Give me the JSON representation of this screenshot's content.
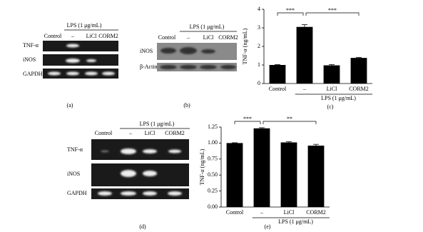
{
  "panels": {
    "a": {
      "lps": "LPS (1 μg/mL)",
      "lanes": [
        "Control",
        "–",
        "LiCl",
        "CORM2"
      ],
      "rows": [
        "TNF-α",
        "iNOS",
        "GAPDH"
      ],
      "caption": "(a)"
    },
    "b": {
      "lps": "LPS (1 μg/mL)",
      "lanes": [
        "Control",
        "–",
        "LiCl",
        "CORM2"
      ],
      "rows": [
        "iNOS",
        "β-Actin"
      ],
      "caption": "(b)"
    },
    "d": {
      "lps": "LPS (1 μg/mL)",
      "lanes": [
        "Control",
        "–",
        "LiCl",
        "CORM2"
      ],
      "rows": [
        "TNF-α",
        "iNOS",
        "GAPDH"
      ],
      "caption": "(d)"
    }
  },
  "chart_data": [
    {
      "type": "bar",
      "ylabel": "TNF-α (ng/mL)",
      "categories": [
        "Control",
        "–",
        "LiCl",
        "CORM2"
      ],
      "values": [
        1.0,
        3.05,
        0.98,
        1.38
      ],
      "errors": [
        0.02,
        0.12,
        0.04,
        0.03
      ],
      "color": "#000000",
      "ylim": [
        0,
        4
      ],
      "yticks": [
        0,
        1,
        2,
        3,
        4
      ],
      "group_label": "LPS (1 μg/mL)",
      "annotations": [
        "***",
        "***"
      ],
      "caption": "(c)"
    },
    {
      "type": "bar",
      "ylabel": "TNF-α (ng/mL)",
      "categories": [
        "Control",
        "–",
        "LiCl",
        "CORM2"
      ],
      "values": [
        1.0,
        1.23,
        1.01,
        0.96
      ],
      "errors": [
        0.005,
        0.01,
        0.01,
        0.02
      ],
      "color": "#000000",
      "ylim": [
        0,
        1.25
      ],
      "yticks": [
        {
          "value": 0,
          "label": "0.00"
        },
        0.25,
        {
          "value": 0.5,
          "label": "0.50"
        },
        0.75,
        {
          "value": 1,
          "label": "1.00"
        },
        1.25
      ],
      "group_label": "LPS (1 μg/mL)",
      "annotations": [
        "***",
        "**"
      ],
      "caption": "(e)"
    }
  ]
}
